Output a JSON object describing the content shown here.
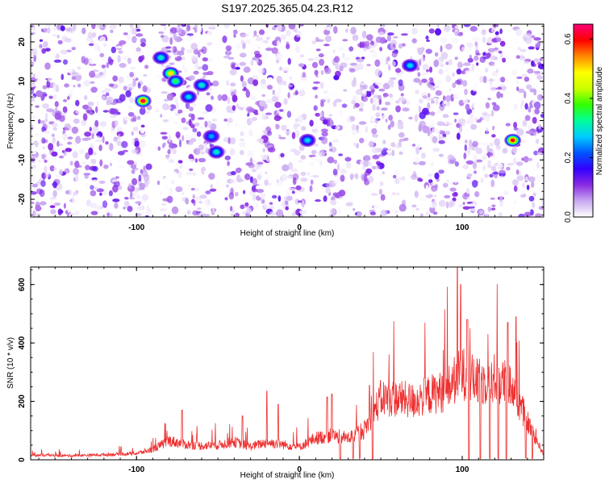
{
  "figure_title": "S197.2025.365.04.23.R12",
  "chart_data": [
    {
      "type": "heatmap",
      "xlabel": "Height of straight line (km)",
      "ylabel": "Frequency (Hz)",
      "xlim": [
        -165,
        150
      ],
      "ylim": [
        -24.5,
        24.5
      ],
      "x_ticks": [
        -100,
        0,
        100
      ],
      "x_tick_labels": [
        "-100",
        "0",
        "100"
      ],
      "y_ticks": [
        -20,
        -10,
        0,
        10,
        20
      ],
      "y_tick_labels": [
        "-20",
        "-10",
        "0",
        "10",
        "20"
      ],
      "colorbar": {
        "label": "Normalized spectral amplitude",
        "range": [
          0,
          0.65
        ],
        "ticks": [
          0.0,
          0.2,
          0.4,
          0.6
        ],
        "tick_labels": [
          "0.0",
          "0.2",
          "0.4",
          "0.6"
        ],
        "colors": [
          "#ffffff",
          "#c8a8f0",
          "#8a2be2",
          "#3300ff",
          "#0055ff",
          "#00ccff",
          "#00ff99",
          "#33ff00",
          "#ccff00",
          "#ffff00",
          "#ff8800",
          "#ff0000",
          "#ff0077"
        ]
      },
      "gaps_x": [
        [
          -92,
          -85
        ],
        [
          -52,
          -46
        ],
        [
          3,
          7
        ],
        [
          64,
          70
        ],
        [
          125,
          132
        ]
      ],
      "hotspots": [
        {
          "x": -96,
          "y": 5,
          "amp": 0.62
        },
        {
          "x": -79,
          "y": 12,
          "amp": 0.5
        },
        {
          "x": -76,
          "y": 10,
          "amp": 0.35
        },
        {
          "x": -85,
          "y": 16,
          "amp": 0.3
        },
        {
          "x": -68,
          "y": 6,
          "amp": 0.28
        },
        {
          "x": -60,
          "y": 9,
          "amp": 0.3
        },
        {
          "x": -54,
          "y": -4,
          "amp": 0.25
        },
        {
          "x": -51,
          "y": -8,
          "amp": 0.3
        },
        {
          "x": 5,
          "y": -5,
          "amp": 0.28
        },
        {
          "x": 68,
          "y": 14,
          "amp": 0.28
        },
        {
          "x": 131,
          "y": -5,
          "amp": 0.6
        }
      ]
    },
    {
      "type": "line",
      "xlabel": "Height of straight line (km)",
      "ylabel": "SNR (10 * v/v)",
      "xlim": [
        -165,
        150
      ],
      "ylim": [
        0,
        660
      ],
      "x_ticks": [
        -100,
        0,
        100
      ],
      "x_tick_labels": [
        "-100",
        "0",
        "100"
      ],
      "y_ticks": [
        0,
        200,
        400,
        600
      ],
      "y_tick_labels": [
        "0",
        "200",
        "400",
        "600"
      ],
      "grid": false,
      "series": [
        {
          "color": "#ee3030",
          "x": [
            -165,
            -140,
            -120,
            -100,
            -90,
            -80,
            -70,
            -60,
            -50,
            -40,
            -30,
            -20,
            -10,
            0,
            10,
            20,
            30,
            40,
            45,
            50,
            60,
            70,
            80,
            90,
            95,
            100,
            110,
            120,
            130,
            140,
            150
          ],
          "y": [
            18,
            16,
            20,
            25,
            40,
            75,
            60,
            55,
            58,
            70,
            52,
            68,
            60,
            50,
            85,
            95,
            85,
            120,
            175,
            240,
            240,
            230,
            255,
            270,
            310,
            340,
            300,
            320,
            290,
            150,
            20
          ],
          "peaks": [
            {
              "x": -72,
              "y": 170
            },
            {
              "x": -35,
              "y": 150
            },
            {
              "x": -20,
              "y": 235
            },
            {
              "x": -13,
              "y": 190
            },
            {
              "x": 17,
              "y": 215
            },
            {
              "x": 20,
              "y": 225
            },
            {
              "x": 43,
              "y": 255
            },
            {
              "x": 97,
              "y": 660
            },
            {
              "x": 99,
              "y": 600
            },
            {
              "x": 103,
              "y": 480
            },
            {
              "x": 128,
              "y": 470
            },
            {
              "x": 133,
              "y": 490
            }
          ],
          "dropouts_x": [
            25,
            33,
            37,
            45,
            104,
            111,
            117,
            122,
            127,
            139,
            143
          ]
        }
      ]
    }
  ]
}
